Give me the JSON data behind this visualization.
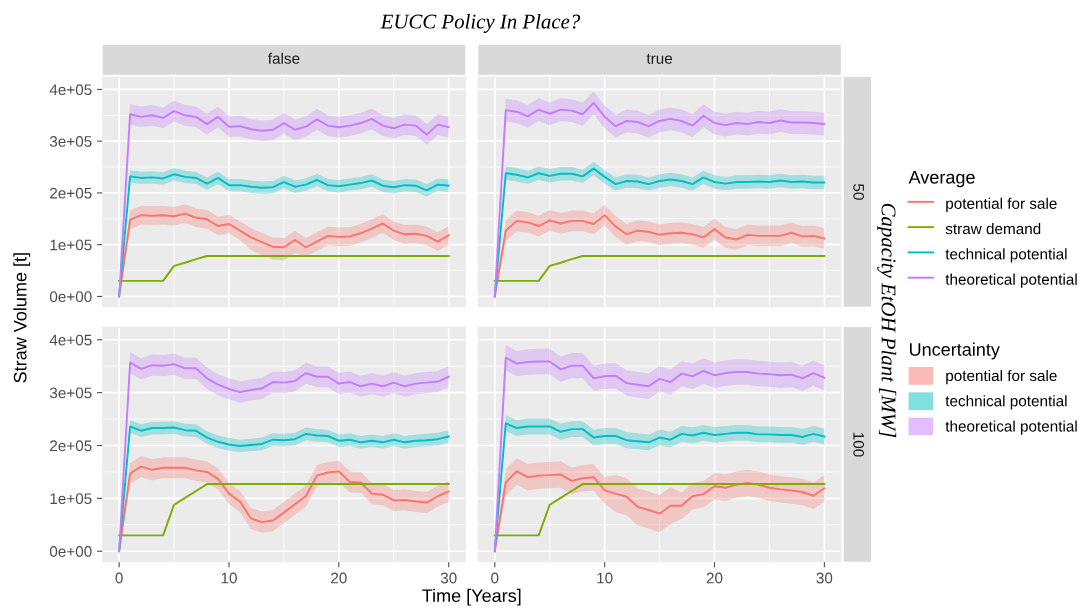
{
  "chart_data": [
    {
      "type": "line",
      "title": "false",
      "annotations": [
        "EUCC Policy In Place?"
      ],
      "x": [
        0,
        1,
        2,
        3,
        4,
        5,
        6,
        7,
        8,
        9,
        10,
        11,
        12,
        13,
        14,
        15,
        16,
        17,
        18,
        19,
        20,
        21,
        22,
        23,
        24,
        25,
        26,
        27,
        28,
        29,
        30
      ],
      "xlim": [
        -1.5,
        31.5
      ],
      "xticks": [
        0,
        10,
        20,
        30
      ],
      "ylim": [
        -20000,
        424000
      ],
      "yticks": [
        {
          "value": 0,
          "label": "0e+00"
        },
        {
          "value": 100000,
          "label": "1e+05"
        },
        {
          "value": 200000,
          "label": "2e+05"
        },
        {
          "value": 300000,
          "label": "3e+05"
        },
        {
          "value": 400000,
          "label": "4e+05"
        }
      ],
      "grid": true,
      "tick_labels": "y",
      "series": [
        {
          "color": "#f8766d",
          "values": [
            0,
            148000,
            157000,
            156000,
            157000,
            155000,
            160000,
            152000,
            149000,
            136000,
            140000,
            127000,
            114000,
            105000,
            96000,
            95000,
            109000,
            95000,
            106000,
            117000,
            115000,
            116000,
            122000,
            131000,
            141000,
            127000,
            120000,
            121000,
            117000,
            106000,
            118000
          ],
          "lower": [
            0,
            130000,
            139000,
            138000,
            139000,
            137000,
            142000,
            134000,
            131000,
            118000,
            122000,
            109000,
            89000,
            80000,
            71000,
            70000,
            84000,
            77000,
            88000,
            99000,
            97000,
            98000,
            104000,
            113000,
            123000,
            109000,
            102000,
            103000,
            99000,
            88000,
            100000
          ],
          "upper": [
            0,
            166000,
            175000,
            174000,
            175000,
            173000,
            178000,
            170000,
            167000,
            154000,
            158000,
            145000,
            132000,
            123000,
            114000,
            113000,
            127000,
            113000,
            124000,
            135000,
            133000,
            134000,
            140000,
            149000,
            159000,
            145000,
            138000,
            139000,
            135000,
            124000,
            136000
          ]
        },
        {
          "color": "#7cae00",
          "values": [
            30000,
            30000,
            30000,
            30000,
            30000,
            59000,
            65000,
            72000,
            78000,
            78000,
            78000,
            78000,
            78000,
            78000,
            78000,
            78000,
            78000,
            78000,
            78000,
            78000,
            78000,
            78000,
            78000,
            78000,
            78000,
            78000,
            78000,
            78000,
            78000,
            78000,
            78000
          ]
        },
        {
          "color": "#00bfc4",
          "values": [
            0,
            232000,
            229000,
            230000,
            228000,
            236000,
            231000,
            229000,
            218000,
            229000,
            215000,
            215000,
            212000,
            210000,
            211000,
            221000,
            212000,
            216000,
            225000,
            215000,
            213000,
            216000,
            219000,
            224000,
            214000,
            211000,
            215000,
            214000,
            205000,
            216000,
            214000
          ],
          "lower": [
            0,
            220000,
            217000,
            218000,
            216000,
            224000,
            219000,
            217000,
            206000,
            217000,
            203000,
            203000,
            200000,
            198000,
            199000,
            209000,
            200000,
            204000,
            213000,
            203000,
            201000,
            204000,
            207000,
            212000,
            202000,
            199000,
            203000,
            202000,
            193000,
            204000,
            202000
          ],
          "upper": [
            0,
            244000,
            241000,
            242000,
            240000,
            248000,
            243000,
            241000,
            230000,
            241000,
            227000,
            227000,
            224000,
            222000,
            223000,
            233000,
            224000,
            228000,
            237000,
            227000,
            225000,
            228000,
            231000,
            236000,
            226000,
            223000,
            227000,
            226000,
            217000,
            228000,
            226000
          ]
        },
        {
          "color": "#c77cff",
          "values": [
            0,
            352000,
            347000,
            350000,
            345000,
            358000,
            350000,
            347000,
            333000,
            347000,
            328000,
            329000,
            323000,
            320000,
            322000,
            335000,
            322000,
            328000,
            342000,
            330000,
            327000,
            330000,
            335000,
            343000,
            330000,
            325000,
            332000,
            330000,
            313000,
            332000,
            327000
          ],
          "lower": [
            0,
            332000,
            327000,
            330000,
            325000,
            338000,
            330000,
            327000,
            313000,
            327000,
            308000,
            309000,
            303000,
            300000,
            302000,
            315000,
            302000,
            308000,
            322000,
            310000,
            307000,
            310000,
            315000,
            323000,
            310000,
            305000,
            312000,
            310000,
            293000,
            312000,
            307000
          ],
          "upper": [
            0,
            372000,
            367000,
            370000,
            365000,
            378000,
            370000,
            367000,
            353000,
            367000,
            348000,
            349000,
            343000,
            340000,
            342000,
            355000,
            342000,
            348000,
            362000,
            350000,
            347000,
            350000,
            355000,
            363000,
            350000,
            345000,
            352000,
            350000,
            333000,
            352000,
            347000
          ]
        }
      ]
    },
    {
      "type": "line",
      "title": "true",
      "y2label": "50",
      "annotations": [
        "Capacity EtOH Plant [MW]"
      ],
      "legend": "right",
      "legend_title": "Average",
      "x": [
        0,
        1,
        2,
        3,
        4,
        5,
        6,
        7,
        8,
        9,
        10,
        11,
        12,
        13,
        14,
        15,
        16,
        17,
        18,
        19,
        20,
        21,
        22,
        23,
        24,
        25,
        26,
        27,
        28,
        29,
        30
      ],
      "xlim": [
        -1.5,
        31.5
      ],
      "xticks": [
        0,
        10,
        20,
        30
      ],
      "ylim": [
        -20000,
        424000
      ],
      "yticks": [
        0,
        100000,
        200000,
        300000,
        400000
      ],
      "grid": true,
      "tick_labels": false,
      "series": [
        {
          "name": "potential for sale",
          "color": "#f8766d",
          "values": [
            0,
            127000,
            146000,
            143000,
            136000,
            147000,
            141000,
            146000,
            146000,
            140000,
            157000,
            135000,
            120000,
            127000,
            125000,
            119000,
            122000,
            123000,
            120000,
            114000,
            130000,
            114000,
            110000,
            119000,
            117000,
            117000,
            117000,
            123000,
            116000,
            117000,
            112000
          ],
          "lower": [
            0,
            107000,
            126000,
            123000,
            116000,
            127000,
            121000,
            126000,
            126000,
            120000,
            137000,
            115000,
            100000,
            107000,
            105000,
            99000,
            102000,
            103000,
            100000,
            94000,
            110000,
            94000,
            90000,
            99000,
            97000,
            97000,
            97000,
            103000,
            96000,
            97000,
            92000
          ],
          "upper": [
            0,
            147000,
            166000,
            163000,
            156000,
            167000,
            161000,
            166000,
            166000,
            160000,
            177000,
            155000,
            140000,
            147000,
            145000,
            139000,
            142000,
            143000,
            140000,
            134000,
            150000,
            134000,
            130000,
            139000,
            137000,
            137000,
            137000,
            143000,
            136000,
            137000,
            132000
          ]
        },
        {
          "name": "straw demand",
          "color": "#7cae00",
          "values": [
            30000,
            30000,
            30000,
            30000,
            30000,
            59000,
            65000,
            72000,
            78000,
            78000,
            78000,
            78000,
            78000,
            78000,
            78000,
            78000,
            78000,
            78000,
            78000,
            78000,
            78000,
            78000,
            78000,
            78000,
            78000,
            78000,
            78000,
            78000,
            78000,
            78000,
            78000
          ]
        },
        {
          "name": "technical potential",
          "color": "#00bfc4",
          "values": [
            0,
            238000,
            235000,
            230000,
            238000,
            233000,
            237000,
            237000,
            232000,
            247000,
            231000,
            217000,
            223000,
            222000,
            217000,
            223000,
            226000,
            223000,
            217000,
            230000,
            221000,
            218000,
            221000,
            221000,
            222000,
            221000,
            224000,
            221000,
            222000,
            220000,
            220000
          ],
          "lower": [
            0,
            225000,
            222000,
            217000,
            225000,
            220000,
            224000,
            224000,
            219000,
            234000,
            218000,
            204000,
            210000,
            209000,
            204000,
            210000,
            213000,
            210000,
            204000,
            217000,
            208000,
            205000,
            208000,
            208000,
            209000,
            208000,
            211000,
            208000,
            209000,
            207000,
            207000
          ],
          "upper": [
            0,
            251000,
            248000,
            243000,
            251000,
            246000,
            250000,
            250000,
            245000,
            260000,
            244000,
            230000,
            236000,
            235000,
            230000,
            236000,
            239000,
            236000,
            230000,
            243000,
            234000,
            231000,
            234000,
            234000,
            235000,
            234000,
            237000,
            234000,
            235000,
            233000,
            233000
          ]
        },
        {
          "name": "theoretical potential",
          "color": "#c77cff",
          "values": [
            0,
            360000,
            357000,
            348000,
            361000,
            353000,
            361000,
            359000,
            352000,
            374000,
            347000,
            329000,
            339000,
            337000,
            329000,
            339000,
            343000,
            339000,
            330000,
            349000,
            335000,
            331000,
            335000,
            333000,
            337000,
            335000,
            340000,
            336000,
            336000,
            335000,
            333000
          ],
          "lower": [
            0,
            338000,
            335000,
            326000,
            339000,
            331000,
            339000,
            337000,
            330000,
            352000,
            325000,
            307000,
            317000,
            315000,
            307000,
            317000,
            321000,
            317000,
            308000,
            327000,
            313000,
            309000,
            313000,
            311000,
            315000,
            313000,
            318000,
            314000,
            314000,
            313000,
            311000
          ],
          "upper": [
            0,
            382000,
            379000,
            370000,
            383000,
            375000,
            383000,
            381000,
            374000,
            396000,
            369000,
            351000,
            361000,
            359000,
            351000,
            361000,
            365000,
            361000,
            352000,
            371000,
            357000,
            353000,
            357000,
            355000,
            359000,
            357000,
            362000,
            358000,
            358000,
            357000,
            355000
          ]
        }
      ]
    },
    {
      "type": "line",
      "xlabel": "Time [Years]",
      "ylabel": "Straw Volume [t]",
      "x": [
        0,
        1,
        2,
        3,
        4,
        5,
        6,
        7,
        8,
        9,
        10,
        11,
        12,
        13,
        14,
        15,
        16,
        17,
        18,
        19,
        20,
        21,
        22,
        23,
        24,
        25,
        26,
        27,
        28,
        29,
        30
      ],
      "xlim": [
        -1.5,
        31.5
      ],
      "xticks": [
        0,
        10,
        20,
        30
      ],
      "ylim": [
        -20000,
        424000
      ],
      "yticks": [
        {
          "value": 0,
          "label": "0e+00"
        },
        {
          "value": 100000,
          "label": "1e+05"
        },
        {
          "value": 200000,
          "label": "2e+05"
        },
        {
          "value": 300000,
          "label": "3e+05"
        },
        {
          "value": 400000,
          "label": "4e+05"
        }
      ],
      "grid": true,
      "series": [
        {
          "color": "#f8766d",
          "values": [
            0,
            147000,
            160000,
            154000,
            158000,
            158000,
            158000,
            153000,
            150000,
            137000,
            109000,
            94000,
            62000,
            55000,
            58000,
            73000,
            89000,
            104000,
            143000,
            149000,
            151000,
            131000,
            130000,
            109000,
            107000,
            96000,
            97000,
            94000,
            92000,
            104000,
            113000
          ],
          "lower": [
            0,
            127000,
            140000,
            134000,
            138000,
            138000,
            138000,
            133000,
            130000,
            117000,
            89000,
            74000,
            42000,
            35000,
            38000,
            53000,
            69000,
            84000,
            123000,
            129000,
            131000,
            111000,
            110000,
            89000,
            87000,
            76000,
            77000,
            74000,
            72000,
            84000,
            93000
          ],
          "upper": [
            0,
            167000,
            180000,
            174000,
            178000,
            178000,
            178000,
            173000,
            170000,
            157000,
            129000,
            114000,
            82000,
            75000,
            78000,
            93000,
            109000,
            124000,
            163000,
            169000,
            171000,
            151000,
            150000,
            129000,
            127000,
            116000,
            117000,
            114000,
            112000,
            124000,
            133000
          ]
        },
        {
          "color": "#7cae00",
          "values": [
            30000,
            30000,
            30000,
            30000,
            30000,
            88000,
            101000,
            114000,
            127000,
            127000,
            127000,
            127000,
            127000,
            127000,
            127000,
            127000,
            127000,
            127000,
            127000,
            127000,
            127000,
            127000,
            127000,
            127000,
            127000,
            127000,
            127000,
            127000,
            127000,
            127000,
            127000
          ]
        },
        {
          "color": "#00bfc4",
          "values": [
            0,
            236000,
            228000,
            233000,
            233000,
            234000,
            229000,
            228000,
            215000,
            207000,
            202000,
            199000,
            201000,
            203000,
            211000,
            210000,
            212000,
            222000,
            219000,
            218000,
            209000,
            211000,
            206000,
            209000,
            206000,
            211000,
            206000,
            209000,
            210000,
            212000,
            217000
          ],
          "lower": [
            0,
            224000,
            216000,
            221000,
            221000,
            222000,
            217000,
            216000,
            203000,
            195000,
            190000,
            187000,
            189000,
            191000,
            199000,
            198000,
            200000,
            210000,
            207000,
            206000,
            197000,
            199000,
            194000,
            197000,
            194000,
            199000,
            194000,
            197000,
            198000,
            200000,
            205000
          ],
          "upper": [
            0,
            248000,
            240000,
            245000,
            245000,
            246000,
            241000,
            240000,
            227000,
            219000,
            214000,
            211000,
            213000,
            215000,
            223000,
            222000,
            224000,
            234000,
            231000,
            230000,
            221000,
            223000,
            218000,
            221000,
            218000,
            223000,
            218000,
            221000,
            222000,
            224000,
            229000
          ]
        },
        {
          "color": "#c77cff",
          "values": [
            0,
            357000,
            345000,
            352000,
            351000,
            354000,
            346000,
            346000,
            327000,
            315000,
            307000,
            301000,
            305000,
            308000,
            320000,
            319000,
            322000,
            337000,
            330000,
            330000,
            317000,
            320000,
            312000,
            317000,
            312000,
            319000,
            312000,
            317000,
            319000,
            321000,
            330000
          ],
          "lower": [
            0,
            337000,
            325000,
            332000,
            331000,
            334000,
            326000,
            326000,
            307000,
            295000,
            287000,
            281000,
            285000,
            288000,
            300000,
            299000,
            302000,
            317000,
            310000,
            310000,
            297000,
            300000,
            292000,
            297000,
            292000,
            299000,
            292000,
            297000,
            299000,
            301000,
            310000
          ],
          "upper": [
            0,
            377000,
            365000,
            372000,
            371000,
            374000,
            366000,
            366000,
            347000,
            335000,
            327000,
            321000,
            325000,
            328000,
            340000,
            339000,
            342000,
            357000,
            350000,
            350000,
            337000,
            340000,
            332000,
            337000,
            332000,
            339000,
            332000,
            337000,
            339000,
            341000,
            350000
          ]
        }
      ]
    },
    {
      "type": "line",
      "y2label": "100",
      "legend": "right",
      "legend_title": "Uncertainty",
      "x": [
        0,
        1,
        2,
        3,
        4,
        5,
        6,
        7,
        8,
        9,
        10,
        11,
        12,
        13,
        14,
        15,
        16,
        17,
        18,
        19,
        20,
        21,
        22,
        23,
        24,
        25,
        26,
        27,
        28,
        29,
        30
      ],
      "xlim": [
        -1.5,
        31.5
      ],
      "xticks": [
        0,
        10,
        20,
        30
      ],
      "ylim": [
        -20000,
        424000
      ],
      "yticks": [
        0,
        100000,
        200000,
        300000,
        400000
      ],
      "grid": true,
      "tick_labels": "x",
      "series": [
        {
          "name": "potential for sale",
          "color": "#f8766d",
          "values": [
            0,
            130000,
            151000,
            140000,
            143000,
            144000,
            145000,
            133000,
            138000,
            140000,
            115000,
            109000,
            103000,
            84000,
            78000,
            71000,
            86000,
            86000,
            104000,
            108000,
            123000,
            120000,
            126000,
            129000,
            126000,
            120000,
            117000,
            115000,
            112000,
            105000,
            119000
          ],
          "lower": [
            0,
            105000,
            126000,
            115000,
            118000,
            119000,
            120000,
            108000,
            113000,
            115000,
            90000,
            74000,
            68000,
            49000,
            43000,
            36000,
            51000,
            61000,
            79000,
            83000,
            98000,
            95000,
            101000,
            104000,
            101000,
            95000,
            92000,
            90000,
            87000,
            80000,
            94000
          ],
          "upper": [
            0,
            155000,
            176000,
            165000,
            168000,
            169000,
            170000,
            158000,
            163000,
            165000,
            140000,
            144000,
            138000,
            119000,
            113000,
            106000,
            121000,
            111000,
            129000,
            133000,
            148000,
            145000,
            151000,
            154000,
            151000,
            145000,
            142000,
            140000,
            137000,
            130000,
            144000
          ]
        },
        {
          "color": "#7cae00",
          "values": [
            30000,
            30000,
            30000,
            30000,
            30000,
            88000,
            101000,
            114000,
            127000,
            127000,
            127000,
            127000,
            127000,
            127000,
            127000,
            127000,
            127000,
            127000,
            127000,
            127000,
            127000,
            127000,
            127000,
            127000,
            127000,
            127000,
            127000,
            127000,
            127000,
            127000,
            127000
          ]
        },
        {
          "name": "technical potential",
          "color": "#00bfc4",
          "values": [
            0,
            242000,
            233000,
            236000,
            236000,
            236000,
            226000,
            231000,
            231000,
            215000,
            218000,
            218000,
            210000,
            208000,
            206000,
            215000,
            211000,
            222000,
            219000,
            224000,
            220000,
            222000,
            224000,
            224000,
            221000,
            221000,
            220000,
            220000,
            216000,
            222000,
            217000
          ],
          "lower": [
            0,
            227000,
            218000,
            221000,
            221000,
            221000,
            211000,
            216000,
            216000,
            200000,
            203000,
            203000,
            195000,
            193000,
            191000,
            200000,
            196000,
            207000,
            204000,
            209000,
            205000,
            207000,
            209000,
            209000,
            206000,
            206000,
            205000,
            205000,
            201000,
            207000,
            202000
          ],
          "upper": [
            0,
            257000,
            248000,
            251000,
            251000,
            251000,
            241000,
            246000,
            246000,
            230000,
            233000,
            233000,
            225000,
            223000,
            221000,
            230000,
            226000,
            237000,
            234000,
            239000,
            235000,
            237000,
            239000,
            239000,
            236000,
            236000,
            235000,
            235000,
            231000,
            237000,
            232000
          ]
        },
        {
          "name": "theoretical potential",
          "color": "#c77cff",
          "values": [
            0,
            366000,
            355000,
            358000,
            359000,
            359000,
            344000,
            351000,
            351000,
            327000,
            331000,
            332000,
            318000,
            315000,
            312000,
            326000,
            320000,
            336000,
            331000,
            341000,
            333000,
            337000,
            339000,
            339000,
            336000,
            335000,
            333000,
            334000,
            327000,
            337000,
            328000
          ],
          "lower": [
            0,
            342000,
            331000,
            334000,
            335000,
            335000,
            320000,
            327000,
            327000,
            303000,
            307000,
            308000,
            294000,
            291000,
            288000,
            302000,
            296000,
            312000,
            307000,
            317000,
            309000,
            313000,
            315000,
            315000,
            312000,
            311000,
            309000,
            310000,
            303000,
            313000,
            304000
          ],
          "upper": [
            0,
            390000,
            379000,
            382000,
            383000,
            383000,
            368000,
            375000,
            375000,
            351000,
            355000,
            356000,
            342000,
            339000,
            336000,
            350000,
            344000,
            360000,
            355000,
            365000,
            357000,
            361000,
            363000,
            363000,
            360000,
            359000,
            357000,
            358000,
            351000,
            361000,
            352000
          ]
        }
      ]
    }
  ]
}
